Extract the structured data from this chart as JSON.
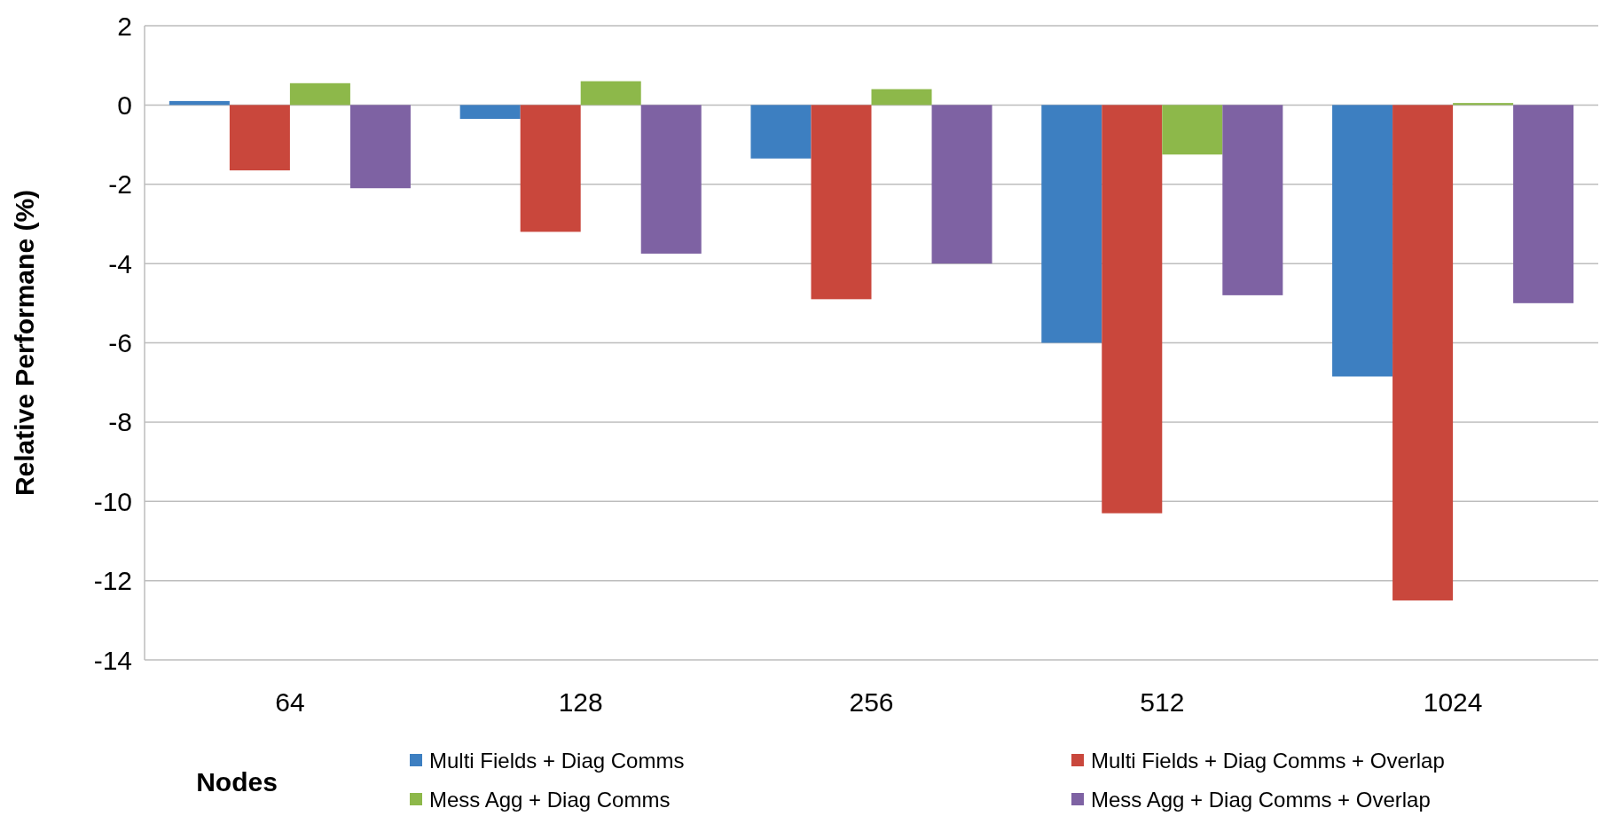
{
  "chart_data": {
    "type": "bar",
    "xlabel": "Nodes",
    "ylabel": "Relative Performane (%)",
    "categories": [
      "64",
      "128",
      "256",
      "512",
      "1024"
    ],
    "series": [
      {
        "name": "Multi Fields + Diag Comms",
        "color": "#3d7fc1",
        "values": [
          0.1,
          -0.35,
          -1.35,
          -6.0,
          -6.85
        ]
      },
      {
        "name": "Multi Fields + Diag Comms + Overlap",
        "color": "#c9473c",
        "values": [
          -1.65,
          -3.2,
          -4.9,
          -10.3,
          -12.5
        ]
      },
      {
        "name": "Mess Agg + Diag Comms",
        "color": "#8db84a",
        "values": [
          0.55,
          0.6,
          0.4,
          -1.25,
          0.05
        ]
      },
      {
        "name": "Mess Agg + Diag Comms + Overlap",
        "color": "#7e62a3",
        "values": [
          -2.1,
          -3.75,
          -4.0,
          -4.8,
          -5.0
        ]
      }
    ],
    "ylim": [
      -14,
      2
    ],
    "yticks": [
      -14,
      -12,
      -10,
      -8,
      -6,
      -4,
      -2,
      0,
      2
    ],
    "grid": "y",
    "legend": "bottom"
  }
}
